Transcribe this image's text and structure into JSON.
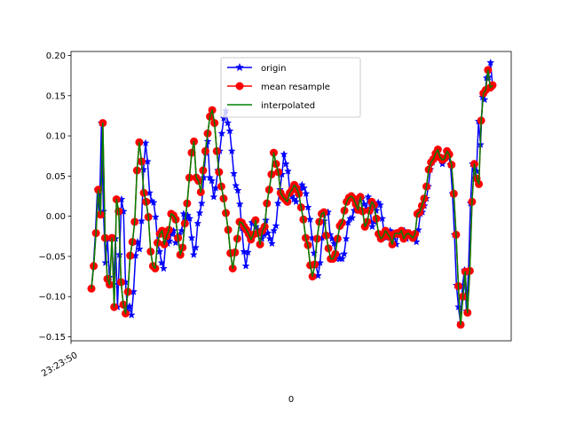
{
  "chart_data": {
    "type": "line",
    "title": "",
    "xlabel": "0",
    "ylabel": "",
    "x_tick_labels": [
      "23:23:50"
    ],
    "ylim": [
      -0.155,
      0.205
    ],
    "y_ticks": [
      -0.15,
      -0.1,
      -0.05,
      0.0,
      0.05,
      0.1,
      0.15,
      0.2
    ],
    "y_tick_labels": [
      "−0.15",
      "−0.10",
      "−0.05",
      "0.00",
      "0.05",
      "0.10",
      "0.15",
      "0.20"
    ],
    "grid": false,
    "legend_position": "upper center",
    "colors": {
      "origin": "#0000ff",
      "mean_resample": "#ff0000",
      "marker_edge_mean": "#008000",
      "interpolated": "#008000"
    },
    "series": [
      {
        "name": "origin",
        "marker": "star",
        "values": [
          -0.09,
          -0.062,
          -0.021,
          0.033,
          0.002,
          0.116,
          0.006,
          -0.058,
          -0.028,
          -0.076,
          -0.086,
          -0.085,
          -0.028,
          -0.113,
          -0.048,
          0.021,
          0.006,
          -0.082,
          -0.118,
          -0.112,
          -0.123,
          -0.094,
          -0.049,
          -0.032,
          -0.041,
          -0.006,
          0.058,
          0.091,
          0.068,
          0.029,
          0.019,
          0.017,
          -0.001,
          -0.033,
          -0.044,
          -0.058,
          -0.065,
          -0.033,
          -0.034,
          -0.031,
          -0.022,
          -0.018,
          -0.033,
          -0.025,
          -0.023,
          -0.018,
          0.003,
          -0.004,
          0.001,
          -0.003,
          -0.027,
          -0.048,
          -0.039,
          -0.009,
          0.004,
          0.016,
          0.048,
          0.079,
          0.093,
          0.048,
          0.044,
          0.024,
          0.035,
          0.057,
          0.081,
          0.103,
          0.122,
          0.131,
          0.116,
          0.106,
          0.081,
          0.053,
          0.038,
          0.032,
          0.015,
          -0.015,
          -0.044,
          -0.062,
          -0.045,
          -0.028,
          -0.008,
          -0.007,
          -0.013,
          -0.017,
          -0.022,
          -0.028,
          -0.023,
          -0.005,
          -0.021,
          -0.028,
          -0.034,
          -0.018,
          -0.012,
          0.016,
          0.033,
          0.052,
          0.077,
          0.065,
          0.056,
          0.029,
          0.025,
          0.021,
          0.018,
          0.028,
          0.033,
          0.039,
          0.035,
          0.028,
          0.011,
          -0.004,
          -0.027,
          -0.046,
          -0.061,
          -0.074,
          -0.058,
          -0.027,
          -0.006,
          0.004,
          0.005,
          -0.023,
          -0.028,
          -0.034,
          -0.053,
          -0.048,
          -0.053,
          -0.053,
          -0.047,
          -0.028,
          -0.008,
          -0.003,
          -0.002,
          0.007,
          0.018,
          0.023,
          0.025,
          0.022,
          0.015,
          0.008,
          0.024,
          0.006,
          -0.013,
          -0.007,
          0.007,
          0.017,
          0.014,
          -0.003,
          -0.022,
          -0.027,
          -0.025,
          -0.018,
          -0.022,
          -0.026,
          -0.035,
          -0.022,
          -0.021,
          -0.022,
          -0.018,
          -0.028,
          -0.023,
          -0.021,
          -0.024,
          -0.027,
          -0.032,
          -0.017,
          0.003,
          0.005,
          0.013,
          0.022,
          0.037,
          0.058,
          0.067,
          0.071,
          0.078,
          0.083,
          0.073,
          0.065,
          0.072,
          0.081,
          0.077,
          0.064,
          0.028,
          -0.023,
          -0.086,
          -0.113,
          -0.133,
          -0.087,
          -0.067,
          -0.118,
          -0.067,
          0.016,
          0.065,
          0.047,
          0.056,
          0.118,
          0.089,
          0.148,
          0.145,
          0.172,
          0.173,
          0.191,
          0.162
        ]
      },
      {
        "name": "mean resample",
        "marker": "circle",
        "values": [
          -0.09,
          -0.062,
          -0.021,
          0.033,
          0.002,
          0.116,
          -0.027,
          -0.078,
          -0.085,
          -0.027,
          -0.113,
          0.021,
          0.006,
          -0.082,
          -0.11,
          -0.121,
          -0.094,
          -0.049,
          -0.032,
          -0.007,
          0.057,
          0.092,
          0.068,
          0.029,
          0.018,
          -0.001,
          -0.044,
          -0.062,
          -0.065,
          -0.033,
          -0.022,
          -0.018,
          -0.035,
          -0.025,
          -0.017,
          0.003,
          0.001,
          -0.004,
          -0.027,
          -0.048,
          -0.039,
          -0.009,
          0.016,
          0.048,
          0.079,
          0.093,
          0.048,
          0.044,
          0.03,
          0.057,
          0.081,
          0.103,
          0.124,
          0.132,
          0.116,
          0.081,
          0.055,
          0.037,
          0.022,
          0.004,
          -0.017,
          -0.046,
          -0.065,
          -0.045,
          -0.028,
          -0.007,
          -0.008,
          -0.013,
          -0.017,
          -0.022,
          -0.029,
          -0.023,
          -0.005,
          -0.021,
          -0.035,
          -0.018,
          -0.013,
          0.016,
          0.033,
          0.052,
          0.079,
          0.065,
          0.055,
          0.029,
          0.024,
          0.021,
          0.018,
          0.029,
          0.033,
          0.039,
          0.035,
          0.028,
          0.011,
          -0.004,
          -0.027,
          -0.036,
          -0.061,
          -0.075,
          -0.06,
          -0.028,
          -0.007,
          0.003,
          0.005,
          -0.024,
          -0.04,
          -0.053,
          -0.053,
          -0.047,
          -0.028,
          -0.012,
          -0.008,
          0.007,
          0.018,
          0.023,
          0.025,
          0.022,
          0.015,
          0.008,
          0.024,
          0.006,
          -0.013,
          -0.007,
          0.007,
          0.018,
          0.014,
          -0.003,
          -0.022,
          -0.028,
          -0.025,
          -0.018,
          -0.022,
          -0.026,
          -0.035,
          -0.022,
          -0.021,
          -0.022,
          -0.018,
          -0.028,
          -0.023,
          -0.021,
          -0.024,
          -0.027,
          -0.022,
          0.003,
          0.005,
          0.013,
          0.022,
          0.037,
          0.058,
          0.067,
          0.071,
          0.078,
          0.083,
          0.073,
          0.07,
          0.072,
          0.081,
          0.077,
          0.064,
          0.028,
          -0.023,
          -0.087,
          -0.135,
          -0.1,
          -0.069,
          -0.12,
          -0.068,
          0.018,
          0.065,
          0.047,
          0.04,
          0.119,
          0.153,
          0.157,
          0.182,
          0.16,
          0.163
        ]
      },
      {
        "name": "interpolated",
        "marker": "none",
        "values": [
          -0.09,
          -0.062,
          -0.021,
          0.033,
          0.002,
          0.116,
          -0.027,
          -0.078,
          -0.085,
          -0.027,
          -0.113,
          0.021,
          0.006,
          -0.082,
          -0.11,
          -0.121,
          -0.094,
          -0.049,
          -0.032,
          -0.007,
          0.057,
          0.092,
          0.068,
          0.029,
          0.018,
          -0.001,
          -0.044,
          -0.062,
          -0.065,
          -0.033,
          -0.022,
          -0.018,
          -0.035,
          -0.025,
          -0.017,
          0.003,
          0.001,
          -0.004,
          -0.027,
          -0.048,
          -0.039,
          -0.009,
          0.016,
          0.048,
          0.079,
          0.093,
          0.048,
          0.044,
          0.03,
          0.057,
          0.081,
          0.103,
          0.124,
          0.132,
          0.116,
          0.081,
          0.055,
          0.037,
          0.022,
          0.004,
          -0.017,
          -0.046,
          -0.065,
          -0.045,
          -0.028,
          -0.007,
          -0.008,
          -0.013,
          -0.017,
          -0.022,
          -0.029,
          -0.023,
          -0.005,
          -0.021,
          -0.035,
          -0.018,
          -0.013,
          0.016,
          0.033,
          0.052,
          0.079,
          0.065,
          0.055,
          0.029,
          0.024,
          0.021,
          0.018,
          0.029,
          0.033,
          0.039,
          0.035,
          0.028,
          0.011,
          -0.004,
          -0.027,
          -0.036,
          -0.061,
          -0.075,
          -0.06,
          -0.028,
          -0.007,
          0.003,
          0.005,
          -0.024,
          -0.04,
          -0.053,
          -0.053,
          -0.047,
          -0.028,
          -0.012,
          -0.008,
          0.007,
          0.018,
          0.023,
          0.025,
          0.022,
          0.015,
          0.008,
          0.024,
          0.006,
          -0.013,
          -0.007,
          0.007,
          0.018,
          0.014,
          -0.003,
          -0.022,
          -0.028,
          -0.025,
          -0.018,
          -0.022,
          -0.026,
          -0.035,
          -0.022,
          -0.021,
          -0.022,
          -0.018,
          -0.028,
          -0.023,
          -0.021,
          -0.024,
          -0.027,
          -0.022,
          0.003,
          0.005,
          0.013,
          0.022,
          0.037,
          0.058,
          0.067,
          0.071,
          0.078,
          0.083,
          0.073,
          0.07,
          0.072,
          0.081,
          0.077,
          0.064,
          0.028,
          -0.023,
          -0.087,
          -0.135,
          -0.1,
          -0.069,
          -0.12,
          -0.068,
          0.018,
          0.065,
          0.047,
          0.04,
          0.119,
          0.153,
          0.157,
          0.182,
          0.16,
          0.163
        ]
      }
    ],
    "legend": {
      "entries": [
        "origin",
        "mean resample",
        "interpolated"
      ]
    }
  }
}
